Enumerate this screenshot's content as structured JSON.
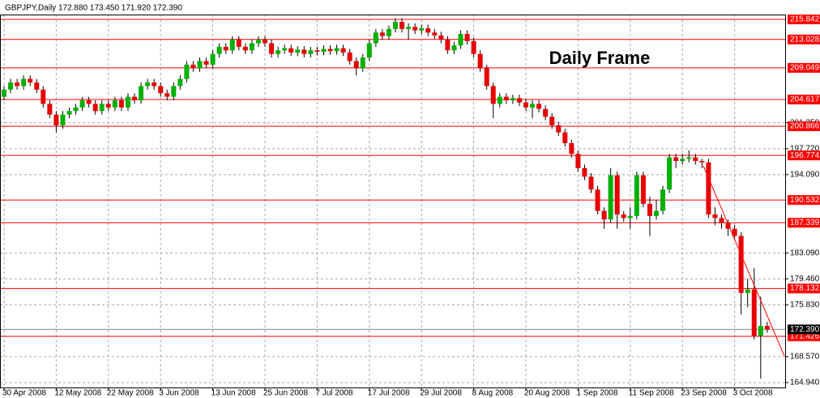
{
  "chart_data": {
    "type": "candlestick",
    "title": "GBPJPY,Daily  172.880 173.450 171.920 172.390",
    "annotation": "Daily Frame",
    "categories": [
      "30 Apr 2008",
      null,
      null,
      null,
      null,
      null,
      null,
      null,
      "12 May 2008",
      null,
      null,
      null,
      null,
      null,
      null,
      null,
      "22 May 2008",
      null,
      null,
      null,
      null,
      null,
      null,
      null,
      "3 Jun 2008",
      null,
      null,
      null,
      null,
      null,
      null,
      null,
      "13 Jun 2008",
      null,
      null,
      null,
      null,
      null,
      null,
      null,
      "25 Jun 2008",
      null,
      null,
      null,
      null,
      null,
      null,
      null,
      "7 Jul 2008",
      null,
      null,
      null,
      null,
      null,
      null,
      null,
      "17 Jul 2008",
      null,
      null,
      null,
      null,
      null,
      null,
      null,
      "29 Jul 2008",
      null,
      null,
      null,
      null,
      null,
      null,
      null,
      "8 Aug 2008",
      null,
      null,
      null,
      null,
      null,
      null,
      null,
      "20 Aug 2008",
      null,
      null,
      null,
      null,
      null,
      null,
      null,
      "1 Sep 2008",
      null,
      null,
      null,
      null,
      null,
      null,
      null,
      "11 Sep 2008",
      null,
      null,
      null,
      null,
      null,
      null,
      null,
      "23 Sep 2008",
      null,
      null,
      null,
      null,
      null,
      null,
      null,
      "3 Oct 2008",
      null,
      null,
      null,
      null,
      null
    ],
    "open": [
      205.0,
      206.0,
      207.0,
      206.5,
      207.5,
      207.0,
      206.0,
      204.0,
      202.5,
      201.0,
      202.5,
      203.0,
      203.5,
      204.5,
      204.0,
      203.0,
      204.0,
      203.5,
      204.5,
      203.5,
      205.0,
      204.5,
      206.5,
      207.0,
      206.5,
      205.5,
      205.0,
      206.5,
      207.5,
      209.5,
      209.0,
      210.0,
      209.5,
      211.0,
      212.0,
      211.5,
      213.0,
      212.0,
      211.5,
      212.5,
      213.0,
      212.5,
      211.0,
      211.5,
      211.8,
      211.2,
      211.6,
      211.0,
      211.5,
      211.3,
      211.7,
      211.4,
      211.8,
      211.2,
      210.0,
      209.0,
      210.5,
      212.5,
      214.0,
      213.5,
      214.5,
      215.5,
      214.5,
      214.8,
      214.3,
      214.6,
      214.0,
      213.6,
      213.0,
      211.5,
      212.2,
      213.8,
      212.8,
      211.0,
      209.0,
      206.5,
      204.0,
      205.0,
      204.5,
      204.8,
      204.2,
      203.5,
      204.0,
      203.3,
      202.2,
      201.0,
      200.0,
      198.5,
      197.0,
      195.0,
      193.8,
      192.0,
      189.0,
      187.8,
      194.0,
      188.5,
      188.0,
      188.3,
      194.0,
      190.0,
      188.3,
      189.0,
      192.0,
      196.5,
      196.0,
      196.3,
      196.5,
      196.0,
      195.8,
      188.5,
      188.0,
      187.3,
      186.5,
      185.5,
      177.5,
      178.0,
      171.5,
      172.88
    ],
    "high": [
      206.5,
      207.5,
      207.5,
      208.0,
      208.0,
      207.5,
      206.5,
      204.5,
      203.0,
      203.0,
      203.5,
      204.0,
      205.0,
      205.0,
      204.5,
      204.5,
      204.5,
      205.0,
      205.0,
      205.5,
      205.5,
      207.0,
      207.5,
      207.5,
      207.0,
      206.0,
      207.0,
      208.0,
      210.0,
      210.0,
      210.5,
      210.5,
      211.5,
      212.5,
      212.5,
      213.5,
      213.5,
      212.5,
      213.0,
      213.5,
      213.5,
      213.0,
      212.0,
      212.3,
      212.3,
      212.1,
      212.1,
      212.0,
      212.0,
      212.2,
      212.2,
      212.3,
      212.3,
      211.7,
      210.5,
      211.0,
      213.0,
      214.5,
      214.5,
      215.0,
      216.0,
      216.0,
      215.3,
      215.3,
      215.1,
      215.1,
      214.5,
      214.1,
      213.5,
      212.7,
      214.3,
      214.3,
      213.3,
      211.5,
      209.5,
      207.0,
      205.5,
      205.5,
      205.3,
      205.3,
      204.7,
      204.5,
      204.5,
      203.8,
      202.7,
      201.5,
      200.5,
      199.0,
      197.5,
      195.5,
      194.3,
      192.5,
      189.5,
      195.0,
      194.5,
      189.0,
      189.5,
      194.5,
      194.5,
      191.0,
      190.5,
      192.5,
      197.0,
      197.0,
      197.0,
      197.5,
      197.0,
      196.3,
      196.3,
      189.5,
      188.5,
      187.8,
      187.0,
      186.0,
      179.5,
      181.0,
      177.0,
      173.45
    ],
    "low": [
      204.5,
      205.5,
      206.0,
      206.0,
      206.5,
      205.5,
      203.5,
      202.0,
      200.0,
      200.5,
      202.0,
      202.5,
      203.0,
      203.5,
      202.5,
      202.5,
      203.0,
      203.0,
      203.0,
      203.0,
      204.0,
      204.0,
      206.0,
      206.0,
      205.0,
      204.5,
      204.5,
      206.0,
      207.0,
      208.5,
      208.5,
      209.0,
      209.0,
      210.5,
      211.0,
      211.0,
      211.5,
      211.0,
      211.0,
      212.0,
      212.0,
      210.5,
      210.5,
      211.0,
      210.7,
      210.7,
      210.5,
      210.5,
      210.8,
      210.8,
      210.9,
      210.9,
      210.7,
      209.5,
      208.0,
      208.5,
      210.0,
      212.0,
      213.0,
      213.0,
      214.0,
      214.0,
      213.0,
      213.8,
      213.8,
      213.5,
      213.1,
      212.5,
      211.0,
      211.0,
      211.7,
      212.3,
      210.5,
      208.5,
      206.0,
      202.0,
      203.5,
      204.0,
      204.0,
      203.7,
      203.0,
      202.0,
      202.8,
      201.7,
      200.5,
      199.5,
      198.0,
      196.5,
      194.5,
      193.3,
      191.5,
      188.5,
      186.5,
      187.3,
      186.5,
      187.5,
      186.5,
      187.8,
      189.5,
      185.5,
      187.8,
      188.5,
      191.5,
      195.0,
      195.5,
      195.8,
      195.5,
      195.0,
      188.0,
      187.0,
      186.5,
      185.5,
      185.0,
      174.5,
      175.5,
      171.0,
      165.5,
      171.92
    ],
    "close": [
      206.0,
      207.0,
      206.5,
      207.5,
      207.0,
      206.0,
      204.0,
      202.5,
      201.0,
      202.5,
      203.0,
      203.5,
      204.5,
      204.0,
      203.0,
      204.0,
      203.5,
      204.5,
      203.5,
      205.0,
      204.5,
      206.5,
      207.0,
      206.5,
      205.5,
      205.0,
      206.5,
      207.5,
      209.5,
      209.0,
      210.0,
      209.5,
      211.0,
      212.0,
      211.5,
      213.0,
      212.0,
      211.5,
      212.5,
      213.0,
      212.5,
      211.0,
      211.5,
      211.8,
      211.2,
      211.6,
      211.0,
      211.5,
      211.3,
      211.7,
      211.4,
      211.8,
      211.2,
      210.0,
      209.0,
      210.5,
      212.5,
      214.0,
      213.5,
      214.5,
      215.5,
      214.5,
      214.8,
      214.3,
      214.6,
      214.0,
      213.6,
      213.0,
      211.5,
      212.2,
      213.8,
      212.8,
      211.0,
      209.0,
      206.5,
      204.0,
      205.0,
      204.5,
      204.8,
      204.2,
      203.5,
      204.0,
      203.3,
      202.2,
      201.0,
      200.0,
      198.5,
      197.0,
      195.0,
      193.8,
      192.0,
      189.0,
      187.8,
      194.0,
      188.5,
      188.0,
      188.3,
      194.0,
      190.0,
      188.3,
      189.0,
      192.0,
      196.5,
      196.0,
      196.3,
      196.5,
      196.0,
      195.8,
      188.5,
      188.0,
      187.3,
      186.5,
      185.5,
      177.5,
      178.0,
      171.5,
      172.88,
      172.39
    ],
    "up_color": "#00b000",
    "down_color": "#e80000",
    "level_color": "#ff0000",
    "ylim": [
      164.14,
      216.52
    ],
    "yticks": [
      {
        "value": 164.94,
        "label": "164.940"
      },
      {
        "value": 168.57,
        "label": "168.570"
      },
      {
        "value": 175.83,
        "label": "175.830"
      },
      {
        "value": 179.46,
        "label": "179.460"
      },
      {
        "value": 183.09,
        "label": "183.090"
      },
      {
        "value": 194.09,
        "label": "194.090"
      },
      {
        "value": 197.72,
        "label": "197.720"
      },
      {
        "value": 201.35,
        "label": "201.350"
      }
    ],
    "levels": [
      215.842,
      213.028,
      209.049,
      204.617,
      200.866,
      196.774,
      190.532,
      187.339,
      178.132,
      171.426
    ],
    "last_price": {
      "value": 172.39,
      "label": "172.390"
    },
    "grid": true
  }
}
